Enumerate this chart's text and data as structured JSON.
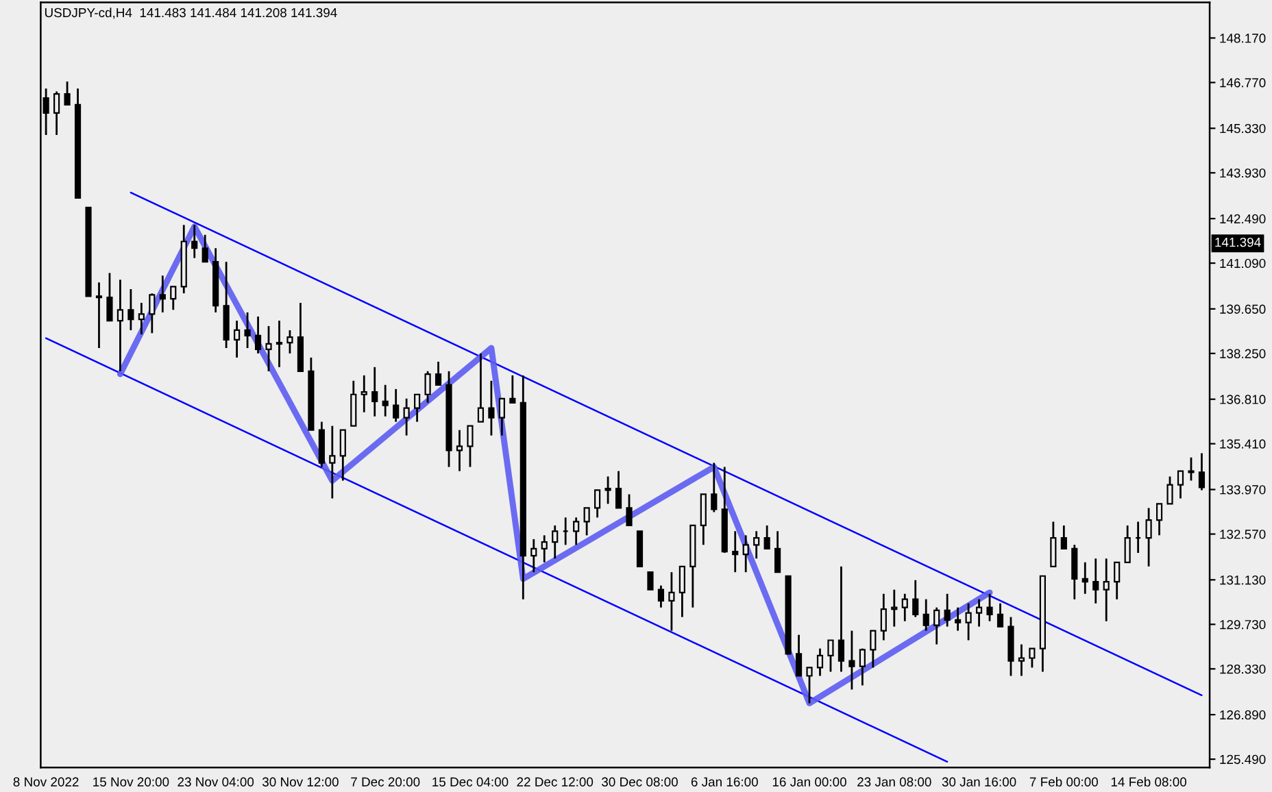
{
  "chart_data": {
    "type": "candlestick",
    "title": "USDJPY-cd,H4  141.483 141.484 141.208 141.394",
    "categories": [
      "8 Nov 2022",
      null,
      null,
      null,
      null,
      null,
      null,
      null,
      "15 Nov 20:00",
      null,
      null,
      null,
      null,
      null,
      null,
      null,
      "23 Nov 04:00",
      null,
      null,
      null,
      null,
      null,
      null,
      null,
      "30 Nov 12:00",
      null,
      null,
      null,
      null,
      null,
      null,
      null,
      "7 Dec 20:00",
      null,
      null,
      null,
      null,
      null,
      null,
      null,
      "15 Dec 04:00",
      null,
      null,
      null,
      null,
      null,
      null,
      null,
      "22 Dec 12:00",
      null,
      null,
      null,
      null,
      null,
      null,
      null,
      "30 Dec 08:00",
      null,
      null,
      null,
      null,
      null,
      null,
      null,
      "6 Jan 16:00",
      null,
      null,
      null,
      null,
      null,
      null,
      null,
      "16 Jan 00:00",
      null,
      null,
      null,
      null,
      null,
      null,
      null,
      "23 Jan 08:00",
      null,
      null,
      null,
      null,
      null,
      null,
      null,
      "30 Jan 16:00",
      null,
      null,
      null,
      null,
      null,
      null,
      null,
      "7 Feb 00:00",
      null,
      null,
      null,
      null,
      null,
      null,
      null,
      "14 Feb 08:00",
      null,
      null,
      null,
      null,
      null
    ],
    "ohlc": [
      [
        146.28,
        146.58,
        145.12,
        145.81
      ],
      [
        145.81,
        146.49,
        145.12,
        146.41
      ],
      [
        146.41,
        146.8,
        146.07,
        146.07
      ],
      [
        146.07,
        146.58,
        143.14,
        143.14
      ],
      [
        142.84,
        142.84,
        140.05,
        140.05
      ],
      [
        140.05,
        140.48,
        138.42,
        140.01
      ],
      [
        140.01,
        140.78,
        139.28,
        139.28
      ],
      [
        139.28,
        140.57,
        137.69,
        139.62
      ],
      [
        139.62,
        140.27,
        138.98,
        139.32
      ],
      [
        139.32,
        139.84,
        138.85,
        139.49
      ],
      [
        139.49,
        140.14,
        138.89,
        140.09
      ],
      [
        140.09,
        140.7,
        139.54,
        139.97
      ],
      [
        139.97,
        140.35,
        139.62,
        140.35
      ],
      [
        140.35,
        142.29,
        140.14,
        141.77
      ],
      [
        141.77,
        142.29,
        141.25,
        141.56
      ],
      [
        141.56,
        141.98,
        141.13,
        141.13
      ],
      [
        141.13,
        141.56,
        139.54,
        139.75
      ],
      [
        139.75,
        141.13,
        138.42,
        138.68
      ],
      [
        138.68,
        139.28,
        138.12,
        138.98
      ],
      [
        138.98,
        139.54,
        138.42,
        138.81
      ],
      [
        138.81,
        139.41,
        138.25,
        138.38
      ],
      [
        138.38,
        139.11,
        137.69,
        138.55
      ],
      [
        138.55,
        139.28,
        137.82,
        138.59
      ],
      [
        138.59,
        138.98,
        138.25,
        138.76
      ],
      [
        138.76,
        139.84,
        137.69,
        137.69
      ],
      [
        137.69,
        138.12,
        135.84,
        135.84
      ],
      [
        135.84,
        136.1,
        134.68,
        134.81
      ],
      [
        134.81,
        135.97,
        133.69,
        135.03
      ],
      [
        135.03,
        135.84,
        134.25,
        135.84
      ],
      [
        135.97,
        137.39,
        135.97,
        136.96
      ],
      [
        136.96,
        137.56,
        136.4,
        137.04
      ],
      [
        137.04,
        137.82,
        136.27,
        136.74
      ],
      [
        136.74,
        137.26,
        136.27,
        136.62
      ],
      [
        136.62,
        137.13,
        136.1,
        136.23
      ],
      [
        136.23,
        136.83,
        135.67,
        136.53
      ],
      [
        136.53,
        136.96,
        136.1,
        136.96
      ],
      [
        136.96,
        137.69,
        136.7,
        137.6
      ],
      [
        137.6,
        137.99,
        137.26,
        137.26
      ],
      [
        137.26,
        137.69,
        134.68,
        135.2
      ],
      [
        135.2,
        135.84,
        134.55,
        135.33
      ],
      [
        135.33,
        135.97,
        134.68,
        135.97
      ],
      [
        136.1,
        138.25,
        136.1,
        136.53
      ],
      [
        136.53,
        137.39,
        135.67,
        136.23
      ],
      [
        136.23,
        136.83,
        135.67,
        136.83
      ],
      [
        136.83,
        137.56,
        136.7,
        136.7
      ],
      [
        136.7,
        137.56,
        130.52,
        131.89
      ],
      [
        131.89,
        132.41,
        131.37,
        132.11
      ],
      [
        132.11,
        132.53,
        131.68,
        132.32
      ],
      [
        132.32,
        132.84,
        131.8,
        132.66
      ],
      [
        132.66,
        133.09,
        132.23,
        132.66
      ],
      [
        132.66,
        133.09,
        132.23,
        132.96
      ],
      [
        132.96,
        133.39,
        132.53,
        133.39
      ],
      [
        133.39,
        133.95,
        133.09,
        133.95
      ],
      [
        133.95,
        134.38,
        133.52,
        134.0
      ],
      [
        134.0,
        134.55,
        133.39,
        133.39
      ],
      [
        133.39,
        133.82,
        132.84,
        132.84
      ],
      [
        132.66,
        132.66,
        131.55,
        131.55
      ],
      [
        131.37,
        131.37,
        130.82,
        130.82
      ],
      [
        130.82,
        130.95,
        130.26,
        130.47
      ],
      [
        130.47,
        131.37,
        129.53,
        130.73
      ],
      [
        130.73,
        131.55,
        129.96,
        131.55
      ],
      [
        131.55,
        132.84,
        130.26,
        132.84
      ],
      [
        132.84,
        133.82,
        132.23,
        133.82
      ],
      [
        133.82,
        134.81,
        133.26,
        133.35
      ],
      [
        133.35,
        134.68,
        131.98,
        132.02
      ],
      [
        132.02,
        132.66,
        131.37,
        131.93
      ],
      [
        131.93,
        132.53,
        131.37,
        132.23
      ],
      [
        132.23,
        132.66,
        131.8,
        132.45
      ],
      [
        132.45,
        132.84,
        132.11,
        132.11
      ],
      [
        132.11,
        132.66,
        131.37,
        131.37
      ],
      [
        131.25,
        131.25,
        128.8,
        128.8
      ],
      [
        128.8,
        129.4,
        128.11,
        128.11
      ],
      [
        128.11,
        128.37,
        127.25,
        128.37
      ],
      [
        128.37,
        128.97,
        128.11,
        128.75
      ],
      [
        128.75,
        129.23,
        128.24,
        129.23
      ],
      [
        129.23,
        131.55,
        128.24,
        128.58
      ],
      [
        128.58,
        129.53,
        127.68,
        128.41
      ],
      [
        128.41,
        128.97,
        127.81,
        128.93
      ],
      [
        128.93,
        129.53,
        128.37,
        129.53
      ],
      [
        129.53,
        130.69,
        129.23,
        130.21
      ],
      [
        130.21,
        130.82,
        129.66,
        130.26
      ],
      [
        130.26,
        130.69,
        129.83,
        130.52
      ],
      [
        130.52,
        131.12,
        129.96,
        130.04
      ],
      [
        130.04,
        130.52,
        129.53,
        129.7
      ],
      [
        129.7,
        130.26,
        129.1,
        130.17
      ],
      [
        130.17,
        130.69,
        129.66,
        129.87
      ],
      [
        129.87,
        130.26,
        129.53,
        129.79
      ],
      [
        129.79,
        130.39,
        129.23,
        130.09
      ],
      [
        130.09,
        130.52,
        129.66,
        130.26
      ],
      [
        130.26,
        130.69,
        129.83,
        130.04
      ],
      [
        130.04,
        130.39,
        129.66,
        129.66
      ],
      [
        129.66,
        129.96,
        128.11,
        128.58
      ],
      [
        128.58,
        129.1,
        128.11,
        128.67
      ],
      [
        128.67,
        128.97,
        128.37,
        128.97
      ],
      [
        128.97,
        131.25,
        128.24,
        131.25
      ],
      [
        131.55,
        132.96,
        131.55,
        132.45
      ],
      [
        132.45,
        132.84,
        132.11,
        132.11
      ],
      [
        132.11,
        132.23,
        130.52,
        131.16
      ],
      [
        131.16,
        131.68,
        130.69,
        131.07
      ],
      [
        131.07,
        131.8,
        130.39,
        130.82
      ],
      [
        130.82,
        131.8,
        129.83,
        131.07
      ],
      [
        131.07,
        131.68,
        130.52,
        131.68
      ],
      [
        131.68,
        132.84,
        131.68,
        132.45
      ],
      [
        132.45,
        132.96,
        131.98,
        132.45
      ],
      [
        132.45,
        133.39,
        131.55,
        133.01
      ],
      [
        133.01,
        133.52,
        132.53,
        133.52
      ],
      [
        133.52,
        134.38,
        133.52,
        134.12
      ],
      [
        134.12,
        134.55,
        133.69,
        134.55
      ],
      [
        134.55,
        134.98,
        134.25,
        134.51
      ],
      [
        134.51,
        135.11,
        133.95,
        134.04
      ]
    ],
    "series": [
      {
        "type": "line",
        "color": "#0000ff",
        "values": [
          null,
          null,
          null,
          null,
          null,
          null,
          null,
          null,
          143.31,
          null,
          null,
          null,
          null,
          null,
          null,
          null,
          null,
          null,
          null,
          null,
          null,
          null,
          null,
          null,
          null,
          null,
          null,
          null,
          null,
          null,
          null,
          null,
          null,
          null,
          null,
          null,
          null,
          null,
          null,
          null,
          null,
          null,
          null,
          null,
          null,
          null,
          null,
          null,
          null,
          null,
          null,
          null,
          null,
          null,
          null,
          null,
          null,
          null,
          null,
          null,
          null,
          null,
          null,
          null,
          null,
          null,
          null,
          null,
          null,
          null,
          null,
          null,
          null,
          null,
          null,
          null,
          null,
          null,
          null,
          null,
          null,
          null,
          null,
          null,
          null,
          null,
          null,
          null,
          null,
          null,
          null,
          null,
          null,
          null,
          null,
          null,
          null,
          null,
          null,
          null,
          null,
          null,
          null,
          null,
          null,
          null,
          null,
          null,
          null,
          127.5
        ]
      },
      {
        "type": "line",
        "color": "#0000ff",
        "values": [
          138.73,
          null,
          null,
          null,
          null,
          null,
          null,
          null,
          null,
          null,
          null,
          null,
          null,
          null,
          null,
          null,
          null,
          null,
          null,
          null,
          null,
          null,
          null,
          null,
          null,
          null,
          null,
          null,
          null,
          null,
          null,
          null,
          null,
          null,
          null,
          null,
          null,
          null,
          null,
          null,
          null,
          null,
          null,
          null,
          null,
          null,
          null,
          null,
          null,
          null,
          null,
          null,
          null,
          null,
          null,
          null,
          null,
          null,
          null,
          null,
          null,
          null,
          null,
          null,
          null,
          null,
          null,
          null,
          null,
          null,
          null,
          null,
          null,
          null,
          null,
          null,
          null,
          null,
          null,
          null,
          null,
          null,
          null,
          null,
          null,
          125.41,
          null,
          null,
          null,
          null,
          null,
          null,
          null,
          null,
          null,
          null,
          null,
          null,
          null,
          null,
          null,
          null,
          null,
          null,
          null,
          null,
          null,
          null,
          null,
          null
        ]
      },
      {
        "type": "line",
        "color": "#5c5cf2",
        "values": [
          null,
          null,
          null,
          null,
          null,
          null,
          null,
          137.6,
          null,
          null,
          null,
          null,
          null,
          null,
          142.24,
          null,
          null,
          null,
          null,
          null,
          null,
          null,
          null,
          null,
          null,
          null,
          null,
          134.25,
          null,
          null,
          null,
          null,
          null,
          null,
          null,
          null,
          null,
          null,
          null,
          null,
          null,
          null,
          138.42,
          null,
          null,
          131.16,
          null,
          null,
          null,
          null,
          null,
          null,
          null,
          null,
          null,
          null,
          null,
          null,
          null,
          null,
          null,
          null,
          null,
          134.68,
          null,
          null,
          null,
          null,
          null,
          null,
          null,
          null,
          127.25,
          null,
          null,
          null,
          null,
          null,
          null,
          null,
          null,
          null,
          null,
          null,
          null,
          null,
          null,
          null,
          null,
          130.73,
          null,
          null,
          null,
          null,
          null,
          null,
          null,
          null,
          null,
          null,
          null,
          null,
          null,
          null,
          null,
          null,
          null,
          null,
          null,
          null
        ]
      }
    ],
    "ylim": [
      125.23,
      149.29
    ],
    "yticks": [
      {
        "value": 125.49,
        "label": "125.490"
      },
      {
        "value": 126.89,
        "label": "126.890"
      },
      {
        "value": 128.33,
        "label": "128.330"
      },
      {
        "value": 129.73,
        "label": "129.730"
      },
      {
        "value": 131.13,
        "label": "131.130"
      },
      {
        "value": 132.57,
        "label": "132.570"
      },
      {
        "value": 133.97,
        "label": "133.970"
      },
      {
        "value": 135.41,
        "label": "135.410"
      },
      {
        "value": 136.81,
        "label": "136.810"
      },
      {
        "value": 138.25,
        "label": "138.250"
      },
      {
        "value": 139.65,
        "label": "139.650"
      },
      {
        "value": 141.09,
        "label": "141.090"
      },
      {
        "value": 142.49,
        "label": "142.490"
      },
      {
        "value": 143.93,
        "label": "143.930"
      },
      {
        "value": 145.33,
        "label": "145.330"
      },
      {
        "value": 146.77,
        "label": "146.770"
      },
      {
        "value": 148.17,
        "label": "148.170"
      }
    ],
    "annotations": [
      "141.394"
    ]
  }
}
